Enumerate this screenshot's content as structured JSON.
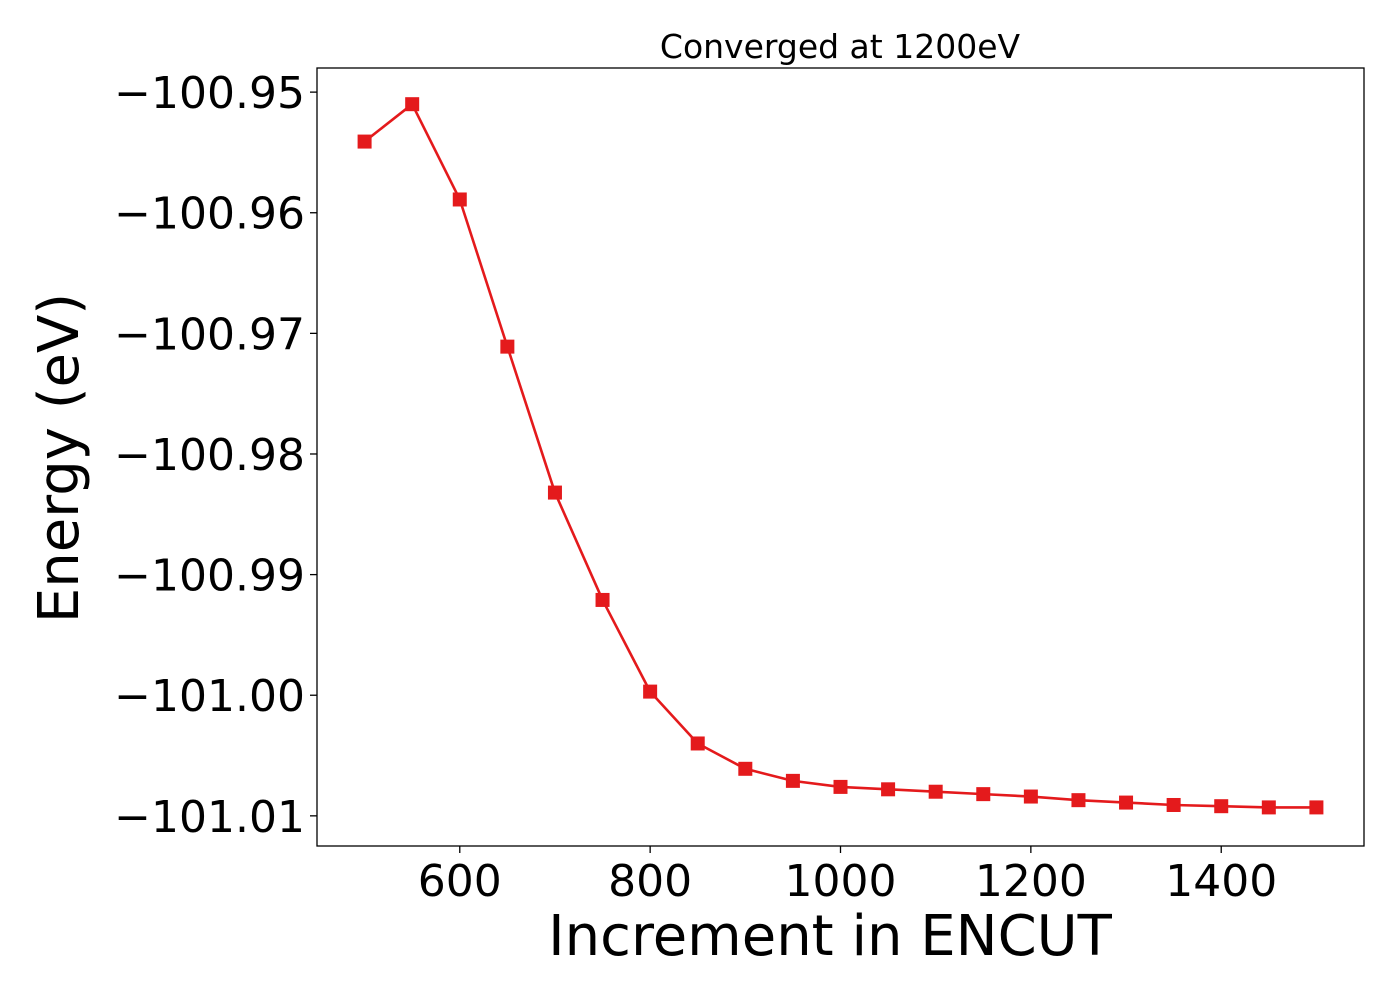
{
  "chart_data": {
    "type": "line",
    "title": "Converged at 1200eV",
    "xlabel": "Increment in ENCUT",
    "ylabel": "Energy (eV)",
    "xlim": [
      450,
      1550
    ],
    "ylim": [
      -101.0125,
      -100.948
    ],
    "xticks": [
      600,
      800,
      1000,
      1200,
      1400
    ],
    "xtick_labels": [
      "600",
      "800",
      "1000",
      "1200",
      "1400"
    ],
    "yticks": [
      -100.95,
      -100.96,
      -100.97,
      -100.98,
      -100.99,
      -101.0,
      -101.01
    ],
    "ytick_labels": [
      "−100.95",
      "−100.96",
      "−100.97",
      "−100.98",
      "−100.99",
      "−101.00",
      "−101.01"
    ],
    "grid": false,
    "series": [
      {
        "color": "#e41a1c",
        "marker": "square",
        "x": [
          500,
          550,
          600,
          650,
          700,
          750,
          800,
          850,
          900,
          950,
          1000,
          1050,
          1100,
          1150,
          1200,
          1250,
          1300,
          1350,
          1400,
          1450,
          1500
        ],
        "y": [
          -100.9541,
          -100.951,
          -100.9589,
          -100.9711,
          -100.9832,
          -100.9921,
          -100.9997,
          -101.004,
          -101.0061,
          -101.0071,
          -101.0076,
          -101.0078,
          -101.008,
          -101.0082,
          -101.0084,
          -101.0087,
          -101.0089,
          -101.0091,
          -101.0092,
          -101.0093,
          -101.0093
        ]
      }
    ]
  }
}
